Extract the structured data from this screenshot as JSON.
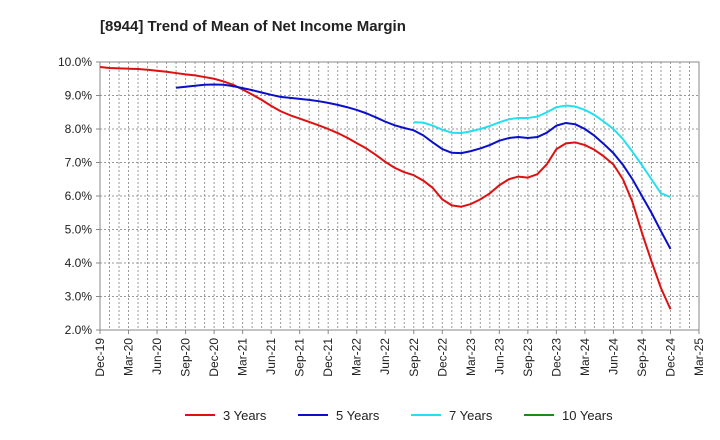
{
  "chart_data": {
    "type": "line",
    "title": "[8944]  Trend of Mean of Net Income Margin",
    "xlabel": "",
    "ylabel": "",
    "ylim": [
      2.0,
      10.0
    ],
    "y_ticks": [
      "10.0%",
      "9.0%",
      "8.0%",
      "7.0%",
      "6.0%",
      "5.0%",
      "4.0%",
      "3.0%",
      "2.0%"
    ],
    "x_ticks": [
      "Dec-19",
      "Mar-20",
      "Jun-20",
      "Sep-20",
      "Dec-20",
      "Mar-21",
      "Jun-21",
      "Sep-21",
      "Dec-21",
      "Mar-22",
      "Jun-22",
      "Sep-22",
      "Dec-22",
      "Mar-23",
      "Jun-23",
      "Sep-23",
      "Dec-23",
      "Mar-24",
      "Jun-24",
      "Sep-24",
      "Dec-24",
      "Mar-25"
    ],
    "grid": true,
    "legend_position": "bottom",
    "series": [
      {
        "name": "3 Years",
        "color": "#dd1111",
        "points": [
          [
            "2019-12",
            9.85
          ],
          [
            "2020-01",
            9.82
          ],
          [
            "2020-02",
            9.81
          ],
          [
            "2020-03",
            9.8
          ],
          [
            "2020-04",
            9.79
          ],
          [
            "2020-05",
            9.77
          ],
          [
            "2020-06",
            9.74
          ],
          [
            "2020-07",
            9.71
          ],
          [
            "2020-08",
            9.67
          ],
          [
            "2020-09",
            9.63
          ],
          [
            "2020-10",
            9.6
          ],
          [
            "2020-11",
            9.55
          ],
          [
            "2020-12",
            9.5
          ],
          [
            "2021-01",
            9.42
          ],
          [
            "2021-02",
            9.32
          ],
          [
            "2021-03",
            9.18
          ],
          [
            "2021-04",
            9.03
          ],
          [
            "2021-05",
            8.87
          ],
          [
            "2021-06",
            8.69
          ],
          [
            "2021-07",
            8.53
          ],
          [
            "2021-08",
            8.41
          ],
          [
            "2021-09",
            8.31
          ],
          [
            "2021-10",
            8.21
          ],
          [
            "2021-11",
            8.11
          ],
          [
            "2021-12",
            8.0
          ],
          [
            "2022-01",
            7.88
          ],
          [
            "2022-02",
            7.74
          ],
          [
            "2022-03",
            7.58
          ],
          [
            "2022-04",
            7.42
          ],
          [
            "2022-05",
            7.23
          ],
          [
            "2022-06",
            7.02
          ],
          [
            "2022-07",
            6.84
          ],
          [
            "2022-08",
            6.71
          ],
          [
            "2022-09",
            6.62
          ],
          [
            "2022-10",
            6.46
          ],
          [
            "2022-11",
            6.24
          ],
          [
            "2022-12",
            5.9
          ],
          [
            "2023-01",
            5.72
          ],
          [
            "2023-02",
            5.68
          ],
          [
            "2023-03",
            5.76
          ],
          [
            "2023-04",
            5.9
          ],
          [
            "2023-05",
            6.08
          ],
          [
            "2023-06",
            6.32
          ],
          [
            "2023-07",
            6.5
          ],
          [
            "2023-08",
            6.58
          ],
          [
            "2023-09",
            6.55
          ],
          [
            "2023-10",
            6.65
          ],
          [
            "2023-11",
            6.95
          ],
          [
            "2023-12",
            7.4
          ],
          [
            "2024-01",
            7.57
          ],
          [
            "2024-02",
            7.6
          ],
          [
            "2024-03",
            7.52
          ],
          [
            "2024-04",
            7.38
          ],
          [
            "2024-05",
            7.18
          ],
          [
            "2024-06",
            6.94
          ],
          [
            "2024-07",
            6.5
          ],
          [
            "2024-08",
            5.82
          ],
          [
            "2024-09",
            4.9
          ],
          [
            "2024-10",
            4.05
          ],
          [
            "2024-11",
            3.25
          ],
          [
            "2024-12",
            2.62
          ]
        ]
      },
      {
        "name": "5 Years",
        "color": "#0a10c8",
        "points": [
          [
            "2020-08",
            9.23
          ],
          [
            "2020-09",
            9.26
          ],
          [
            "2020-10",
            9.29
          ],
          [
            "2020-11",
            9.32
          ],
          [
            "2020-12",
            9.33
          ],
          [
            "2021-01",
            9.32
          ],
          [
            "2021-02",
            9.28
          ],
          [
            "2021-03",
            9.22
          ],
          [
            "2021-04",
            9.16
          ],
          [
            "2021-05",
            9.09
          ],
          [
            "2021-06",
            9.02
          ],
          [
            "2021-07",
            8.96
          ],
          [
            "2021-08",
            8.93
          ],
          [
            "2021-09",
            8.9
          ],
          [
            "2021-10",
            8.87
          ],
          [
            "2021-11",
            8.83
          ],
          [
            "2021-12",
            8.78
          ],
          [
            "2022-01",
            8.72
          ],
          [
            "2022-02",
            8.65
          ],
          [
            "2022-03",
            8.57
          ],
          [
            "2022-04",
            8.47
          ],
          [
            "2022-05",
            8.35
          ],
          [
            "2022-06",
            8.22
          ],
          [
            "2022-07",
            8.11
          ],
          [
            "2022-08",
            8.03
          ],
          [
            "2022-09",
            7.96
          ],
          [
            "2022-10",
            7.81
          ],
          [
            "2022-11",
            7.6
          ],
          [
            "2022-12",
            7.4
          ],
          [
            "2023-01",
            7.29
          ],
          [
            "2023-02",
            7.28
          ],
          [
            "2023-03",
            7.34
          ],
          [
            "2023-04",
            7.42
          ],
          [
            "2023-05",
            7.52
          ],
          [
            "2023-06",
            7.65
          ],
          [
            "2023-07",
            7.73
          ],
          [
            "2023-08",
            7.76
          ],
          [
            "2023-09",
            7.73
          ],
          [
            "2023-10",
            7.76
          ],
          [
            "2023-11",
            7.89
          ],
          [
            "2023-12",
            8.1
          ],
          [
            "2024-01",
            8.18
          ],
          [
            "2024-02",
            8.14
          ],
          [
            "2024-03",
            8.0
          ],
          [
            "2024-04",
            7.8
          ],
          [
            "2024-05",
            7.55
          ],
          [
            "2024-06",
            7.28
          ],
          [
            "2024-07",
            6.93
          ],
          [
            "2024-08",
            6.5
          ],
          [
            "2024-09",
            6.0
          ],
          [
            "2024-10",
            5.5
          ],
          [
            "2024-11",
            4.95
          ],
          [
            "2024-12",
            4.42
          ]
        ]
      },
      {
        "name": "7 Years",
        "color": "#22e0f0",
        "points": [
          [
            "2022-09",
            8.2
          ],
          [
            "2022-10",
            8.19
          ],
          [
            "2022-11",
            8.1
          ],
          [
            "2022-12",
            7.98
          ],
          [
            "2023-01",
            7.89
          ],
          [
            "2023-02",
            7.88
          ],
          [
            "2023-03",
            7.93
          ],
          [
            "2023-04",
            8.0
          ],
          [
            "2023-05",
            8.09
          ],
          [
            "2023-06",
            8.2
          ],
          [
            "2023-07",
            8.29
          ],
          [
            "2023-08",
            8.33
          ],
          [
            "2023-09",
            8.33
          ],
          [
            "2023-10",
            8.37
          ],
          [
            "2023-11",
            8.5
          ],
          [
            "2023-12",
            8.65
          ],
          [
            "2024-01",
            8.7
          ],
          [
            "2024-02",
            8.67
          ],
          [
            "2024-03",
            8.57
          ],
          [
            "2024-04",
            8.42
          ],
          [
            "2024-05",
            8.22
          ],
          [
            "2024-06",
            8.0
          ],
          [
            "2024-07",
            7.7
          ],
          [
            "2024-08",
            7.32
          ],
          [
            "2024-09",
            6.92
          ],
          [
            "2024-10",
            6.5
          ],
          [
            "2024-11",
            6.08
          ],
          [
            "2024-12",
            5.97
          ]
        ]
      },
      {
        "name": "10 Years",
        "color": "#1a8a1a",
        "points": []
      }
    ]
  }
}
